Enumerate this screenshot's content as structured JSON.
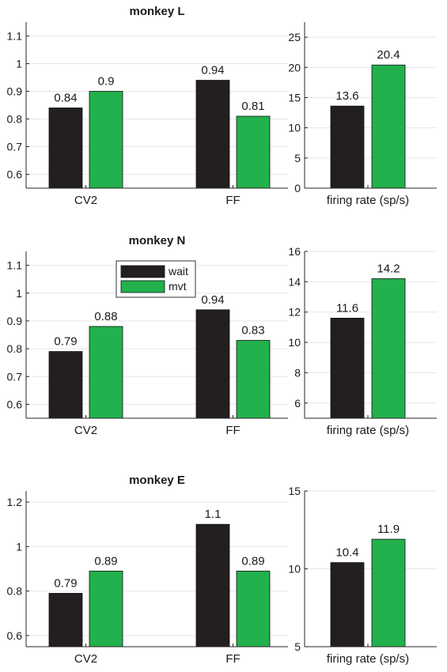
{
  "colors": {
    "wait": "#231f20",
    "mvt": "#22b14c",
    "axis": "#262626",
    "grid": "#e6e6e6"
  },
  "legend": [
    {
      "label": "wait",
      "color": "#231f20"
    },
    {
      "label": "mvt",
      "color": "#22b14c"
    }
  ],
  "chart_data": [
    {
      "type": "bar",
      "title": "monkey L",
      "xlabel": "",
      "ylabel": "",
      "categories": [
        "CV2",
        "FF"
      ],
      "ylim": [
        0.55,
        1.15
      ],
      "yticks": [
        "0.6",
        "0.7",
        "0.8",
        "0.9",
        "1",
        "1.1"
      ],
      "grid": "horizontal",
      "series": [
        {
          "name": "wait",
          "values": [
            0.84,
            0.94
          ],
          "labels": [
            "0.84",
            "0.94"
          ]
        },
        {
          "name": "mvt",
          "values": [
            0.9,
            0.81
          ],
          "labels": [
            "0.9",
            "0.81"
          ]
        }
      ]
    },
    {
      "type": "bar",
      "title": "",
      "xlabel": "",
      "ylabel": "",
      "categories": [
        "firing rate (sp/s)"
      ],
      "ylim": [
        0,
        27.5
      ],
      "yticks": [
        "0",
        "5",
        "10",
        "15",
        "20",
        "25"
      ],
      "grid": "horizontal",
      "series": [
        {
          "name": "wait",
          "values": [
            13.6
          ],
          "labels": [
            "13.6"
          ]
        },
        {
          "name": "mvt",
          "values": [
            20.4
          ],
          "labels": [
            "20.4"
          ]
        }
      ]
    },
    {
      "type": "bar",
      "title": "monkey N",
      "xlabel": "",
      "ylabel": "",
      "categories": [
        "CV2",
        "FF"
      ],
      "ylim": [
        0.55,
        1.15
      ],
      "yticks": [
        "0.6",
        "0.7",
        "0.8",
        "0.9",
        "1",
        "1.1"
      ],
      "grid": "horizontal",
      "legend_position": "top-center",
      "series": [
        {
          "name": "wait",
          "values": [
            0.79,
            0.94
          ],
          "labels": [
            "0.79",
            "0.94"
          ]
        },
        {
          "name": "mvt",
          "values": [
            0.88,
            0.83
          ],
          "labels": [
            "0.88",
            "0.83"
          ]
        }
      ]
    },
    {
      "type": "bar",
      "title": "",
      "xlabel": "",
      "ylabel": "",
      "categories": [
        "firing rate (sp/s)"
      ],
      "ylim": [
        5,
        16
      ],
      "yticks": [
        "6",
        "8",
        "10",
        "12",
        "14",
        "16"
      ],
      "grid": "horizontal",
      "series": [
        {
          "name": "wait",
          "values": [
            11.6
          ],
          "labels": [
            "11.6"
          ]
        },
        {
          "name": "mvt",
          "values": [
            14.2
          ],
          "labels": [
            "14.2"
          ]
        }
      ]
    },
    {
      "type": "bar",
      "title": "monkey E",
      "xlabel": "",
      "ylabel": "",
      "categories": [
        "CV2",
        "FF"
      ],
      "ylim": [
        0.55,
        1.25
      ],
      "yticks": [
        "0.6",
        "0.8",
        "1",
        "1.2"
      ],
      "grid": "horizontal",
      "series": [
        {
          "name": "wait",
          "values": [
            0.79,
            1.1
          ],
          "labels": [
            "0.79",
            "1.1"
          ]
        },
        {
          "name": "mvt",
          "values": [
            0.89,
            0.89
          ],
          "labels": [
            "0.89",
            "0.89"
          ]
        }
      ]
    },
    {
      "type": "bar",
      "title": "",
      "xlabel": "",
      "ylabel": "",
      "categories": [
        "firing rate (sp/s)"
      ],
      "ylim": [
        5,
        15
      ],
      "yticks": [
        "5",
        "10",
        "15"
      ],
      "grid": "horizontal",
      "series": [
        {
          "name": "wait",
          "values": [
            10.4
          ],
          "labels": [
            "10.4"
          ]
        },
        {
          "name": "mvt",
          "values": [
            11.9
          ],
          "labels": [
            "11.9"
          ]
        }
      ]
    }
  ]
}
